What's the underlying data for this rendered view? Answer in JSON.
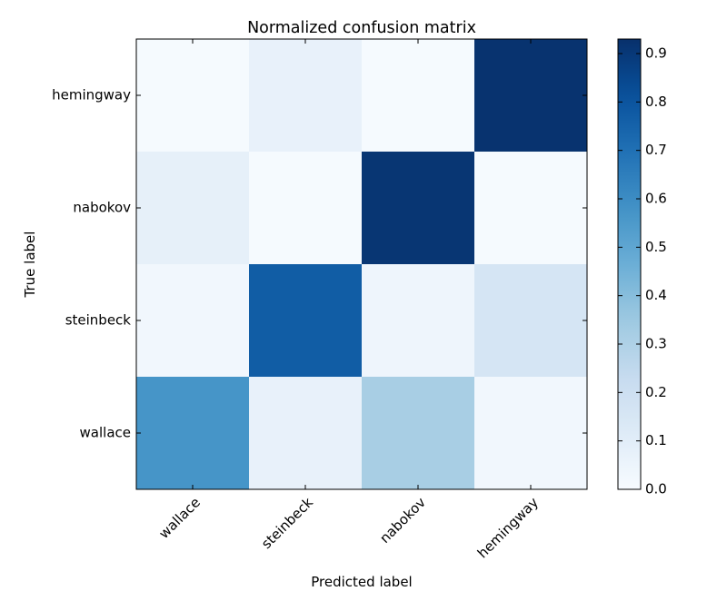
{
  "chart_data": {
    "type": "heatmap",
    "title": "Normalized confusion matrix",
    "xlabel": "Predicted label",
    "ylabel": "True label",
    "x_categories": [
      "wallace",
      "steinbeck",
      "nabokov",
      "hemingway"
    ],
    "y_categories": [
      "hemingway",
      "nabokov",
      "steinbeck",
      "wallace"
    ],
    "values": [
      [
        0.01,
        0.07,
        0.01,
        0.92
      ],
      [
        0.08,
        0.01,
        0.91,
        0.01
      ],
      [
        0.03,
        0.77,
        0.04,
        0.16
      ],
      [
        0.57,
        0.07,
        0.32,
        0.03
      ]
    ],
    "colormap": "Blues",
    "colorbar": {
      "range": [
        0,
        0.93
      ],
      "ticks": [
        0.0,
        0.1,
        0.2,
        0.3,
        0.4,
        0.5,
        0.6,
        0.7,
        0.8,
        0.9
      ],
      "tick_labels": [
        "0.0",
        "0.1",
        "0.2",
        "0.3",
        "0.4",
        "0.5",
        "0.6",
        "0.7",
        "0.8",
        "0.9"
      ]
    }
  }
}
